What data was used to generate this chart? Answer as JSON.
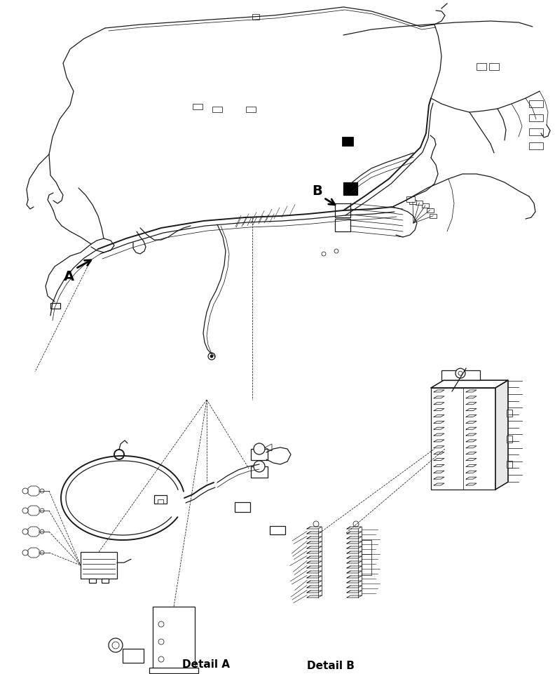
{
  "background_color": "#ffffff",
  "line_color": "#1a1a1a",
  "detail_a_label": "Detail A",
  "detail_b_label": "Detail B",
  "label_A": "A",
  "label_B": "B",
  "figsize": [
    7.92,
    9.61
  ],
  "dpi": 100,
  "lw_thin": 0.55,
  "lw_med": 0.9,
  "lw_thick": 1.4,
  "lw_xthick": 2.0
}
